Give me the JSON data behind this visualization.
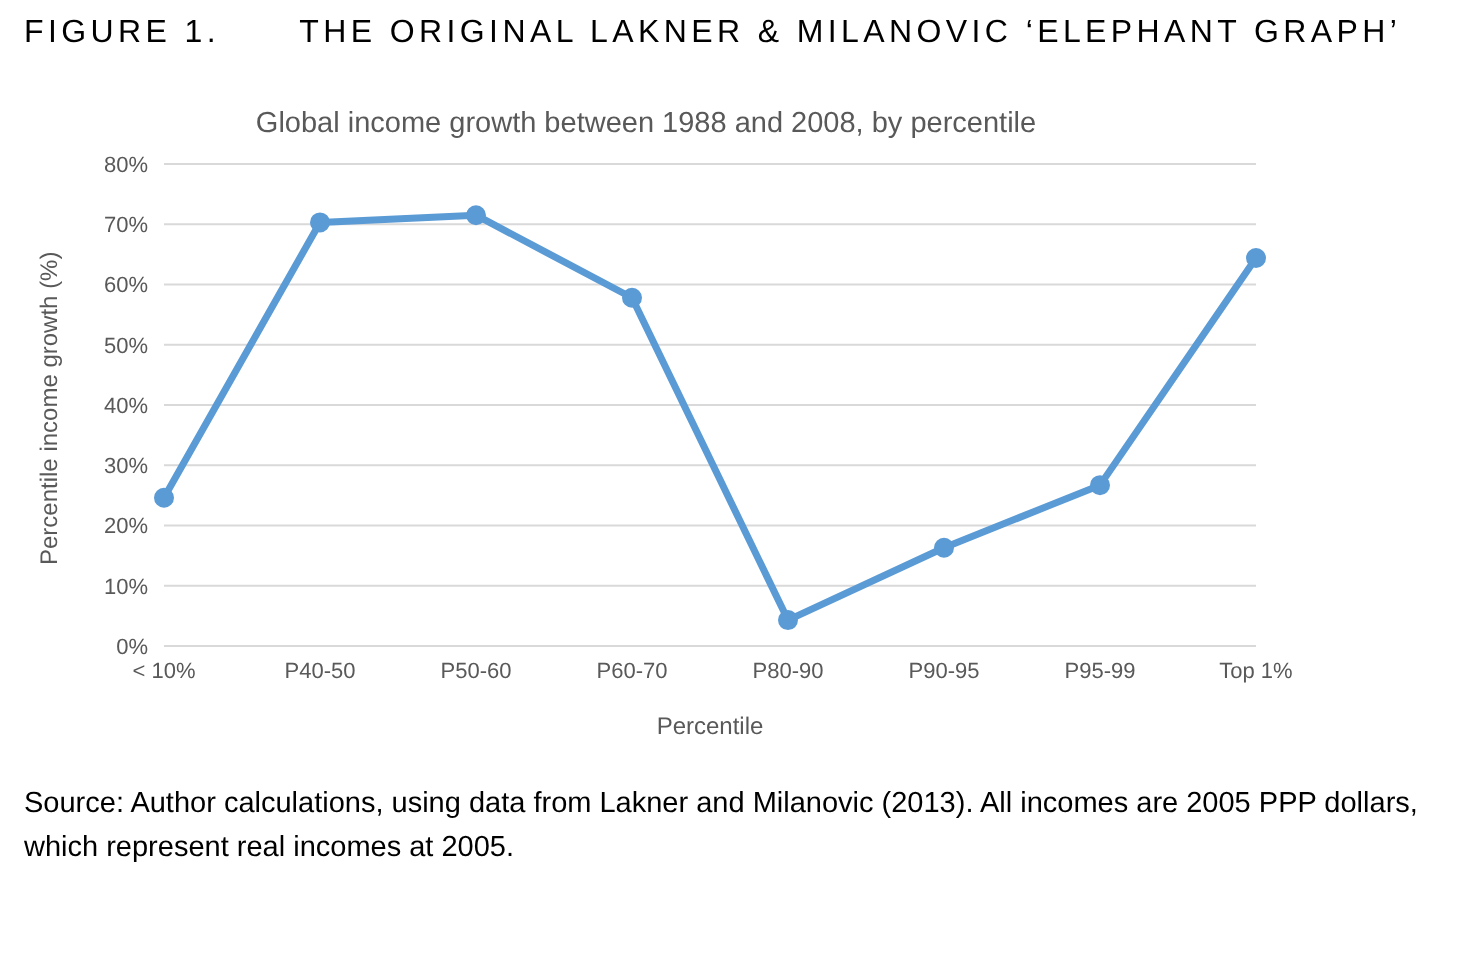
{
  "chart_data": {
    "type": "line",
    "title": "FIGURE 1.      THE ORIGINAL LAKNER & MILANOVIC ‘ELEPHANT GRAPH’",
    "subtitle": "Global income growth between 1988 and 2008, by percentile",
    "xlabel": "Percentile",
    "ylabel": "Percentile income growth (%)",
    "categories": [
      "< 10%",
      "P40-50",
      "P50-60",
      "P60-70",
      "P80-90",
      "P90-95",
      "P95-99",
      "Top 1%"
    ],
    "series": [
      {
        "color": "#5b9bd5",
        "values": [
          24.6,
          70.3,
          71.5,
          57.8,
          4.3,
          16.3,
          26.7,
          64.4
        ]
      }
    ],
    "ylim": [
      0,
      80
    ],
    "yticks": [
      {
        "value": 0,
        "label": "0%"
      },
      {
        "value": 10,
        "label": "10%"
      },
      {
        "value": 20,
        "label": "20%"
      },
      {
        "value": 30,
        "label": "30%"
      },
      {
        "value": 40,
        "label": "40%"
      },
      {
        "value": 50,
        "label": "50%"
      },
      {
        "value": 60,
        "label": "60%"
      },
      {
        "value": 70,
        "label": "70%"
      },
      {
        "value": 80,
        "label": "80%"
      }
    ],
    "grid": "y",
    "marker": "circle",
    "line_style": "solid",
    "legend": false,
    "annotations": [
      "Source: Author calculations, using data from Lakner and Milanovic (2013). All incomes are 2005 PPP dollars, which represent real incomes at 2005."
    ]
  }
}
